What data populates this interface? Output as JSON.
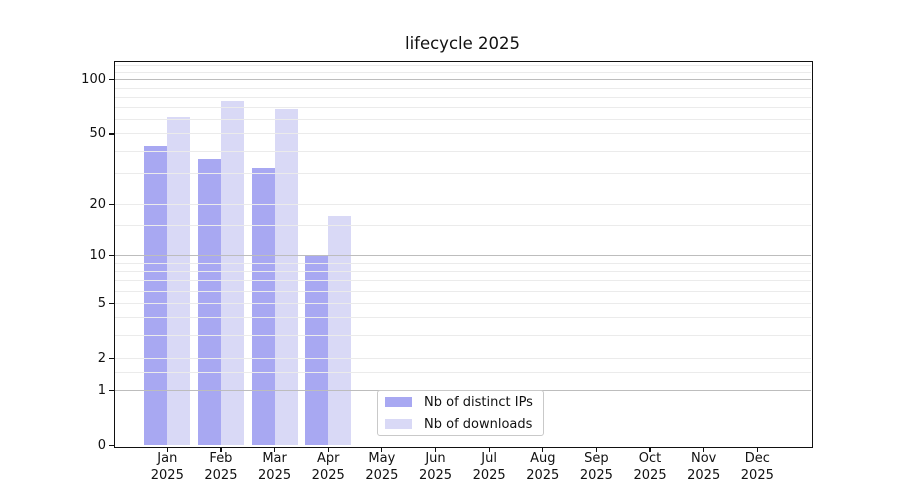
{
  "chart_data": {
    "type": "bar",
    "title": "lifecycle 2025",
    "scale": "log1p",
    "grid": true,
    "legend_position": "lower-center",
    "categories": [
      "Jan",
      "Feb",
      "Mar",
      "Apr",
      "May",
      "Jun",
      "Jul",
      "Aug",
      "Sep",
      "Oct",
      "Nov",
      "Dec"
    ],
    "year_label": "2025",
    "series": [
      {
        "name": "Nb of distinct IPs",
        "color": "#a8a8f2",
        "values": [
          43,
          36,
          32,
          10,
          null,
          null,
          null,
          null,
          null,
          null,
          null,
          null
        ]
      },
      {
        "name": "Nb of downloads",
        "color": "#d9d9f6",
        "values": [
          62,
          76,
          69,
          17,
          null,
          null,
          null,
          null,
          null,
          null,
          null,
          null
        ]
      }
    ],
    "y_ticks": [
      0,
      1,
      2,
      5,
      10,
      20,
      50,
      100
    ],
    "ylim": [
      0,
      127
    ],
    "xlabel": "",
    "ylabel": "",
    "gridlines": {
      "decade": [
        1,
        10,
        100
      ],
      "minor": [
        1.5,
        2,
        3,
        4,
        5,
        6,
        7,
        8,
        9,
        15,
        20,
        30,
        40,
        50,
        60,
        70,
        80,
        90,
        110,
        120
      ],
      "decade_color": "#bdbdbd",
      "minor_color": "#ebebeb"
    }
  }
}
